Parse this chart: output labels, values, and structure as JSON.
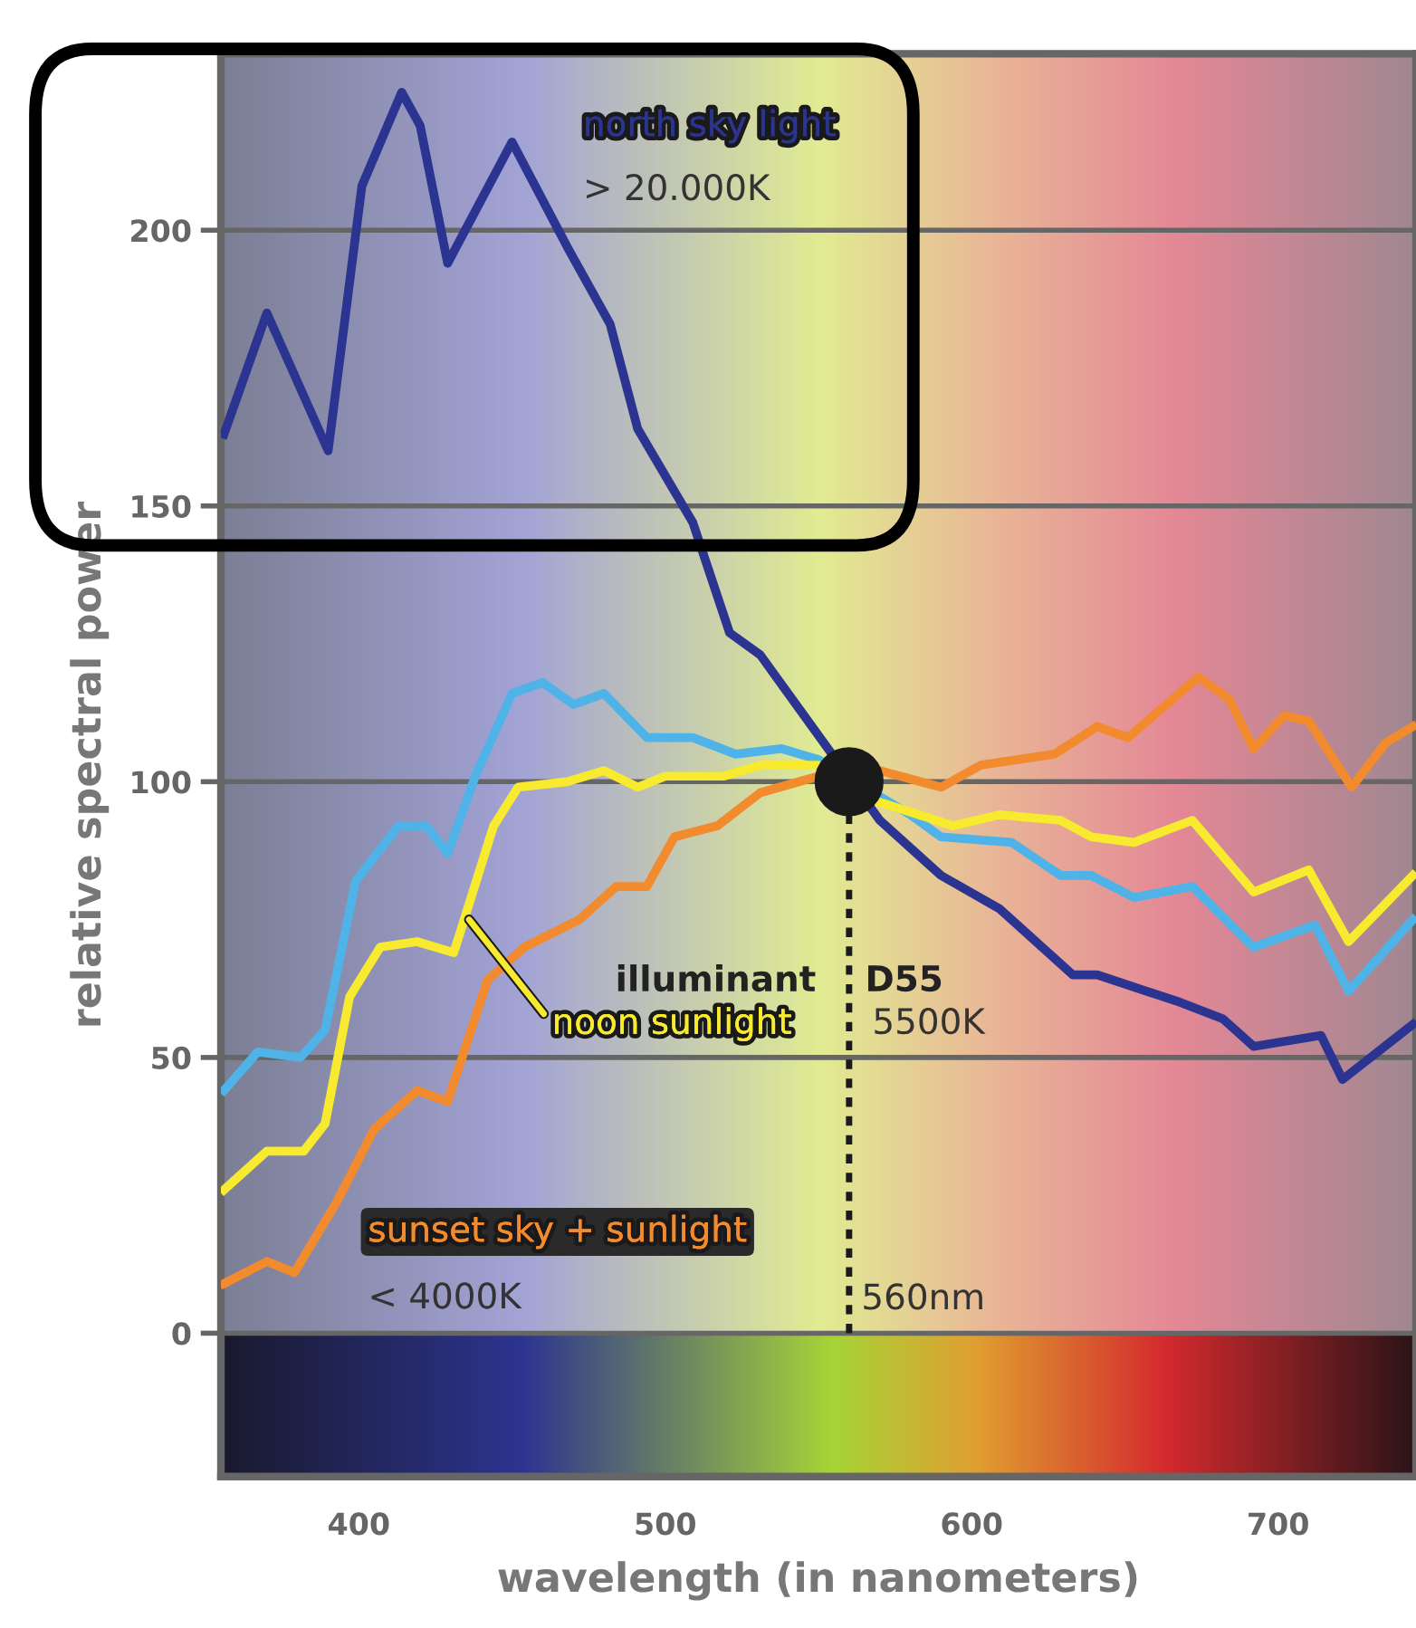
{
  "chart_data": {
    "type": "line",
    "xlabel": "wavelength (in nanometers)",
    "ylabel": "relative spectral power",
    "xlim": [
      355,
      745
    ],
    "ylim": [
      -26,
      232
    ],
    "xticks": [
      400,
      500,
      600,
      700
    ],
    "yticks": [
      0,
      50,
      100,
      150,
      200
    ],
    "grid": "y",
    "legend": false,
    "series": [
      {
        "name": "north sky light",
        "color": "#2b3490",
        "x": [
          356,
          370,
          390,
          401,
          414,
          420,
          429,
          450,
          468,
          482,
          491,
          509,
          521,
          531,
          570,
          590,
          609,
          633,
          641,
          668,
          682,
          692,
          714,
          721,
          744
        ],
        "values": [
          163,
          185,
          160,
          208,
          225,
          219,
          194,
          216,
          197,
          183,
          164,
          147,
          127,
          123,
          93,
          83,
          77,
          65,
          65,
          60,
          57,
          52,
          54,
          46,
          56
        ]
      },
      {
        "color": "#4fb3e8",
        "x": [
          356,
          367,
          381,
          389,
          399,
          413,
          422,
          429,
          438,
          450,
          460,
          470,
          480,
          494,
          509,
          523,
          538,
          550,
          580,
          590,
          613,
          629,
          639,
          653,
          672,
          692,
          712,
          723,
          744
        ],
        "values": [
          44,
          51,
          50,
          55,
          82,
          92,
          92,
          87,
          101,
          116,
          118,
          114,
          116,
          108,
          108,
          105,
          106,
          104,
          94,
          90,
          89,
          83,
          83,
          79,
          81,
          70,
          74,
          62,
          75
        ]
      },
      {
        "name": "noon sunlight",
        "color": "#f7ea2f",
        "x": [
          356,
          370,
          382,
          389,
          397,
          407,
          419,
          431,
          444,
          452,
          468,
          480,
          491,
          500,
          519,
          531,
          550,
          566,
          594,
          609,
          629,
          639,
          653,
          672,
          692,
          710,
          723,
          744
        ],
        "values": [
          26,
          33,
          33,
          38,
          61,
          70,
          71,
          69,
          92,
          99,
          100,
          102,
          99,
          101,
          101,
          103,
          103,
          97,
          92,
          94,
          93,
          90,
          89,
          93,
          80,
          84,
          71,
          83
        ]
      },
      {
        "name": "sunset sky + sunlight",
        "color": "#f28a2e",
        "x": [
          356,
          370,
          379,
          393,
          405,
          419,
          429,
          442,
          454,
          472,
          484,
          494,
          503,
          517,
          531,
          550,
          570,
          590,
          603,
          627,
          641,
          651,
          674,
          684,
          692,
          702,
          710,
          724,
          735,
          744
        ],
        "values": [
          9,
          13,
          11,
          24,
          37,
          44,
          42,
          64,
          70,
          75,
          81,
          81,
          90,
          92,
          98,
          101,
          102,
          99,
          103,
          105,
          110,
          108,
          119,
          115,
          106,
          112,
          111,
          99,
          107,
          110
        ]
      },
      {
        "type": "scatter",
        "marker": "circle",
        "color": "#1a1a1a",
        "x": [
          560
        ],
        "values": [
          100
        ]
      }
    ],
    "ref_lines": [
      {
        "axis": "x",
        "value": 560,
        "label": "560nm",
        "line_style": "dotted",
        "color": "#1a1a1a"
      }
    ],
    "annotations": [
      "> 20.000K",
      "illuminant D55",
      "5500K",
      "< 4000K"
    ]
  }
}
